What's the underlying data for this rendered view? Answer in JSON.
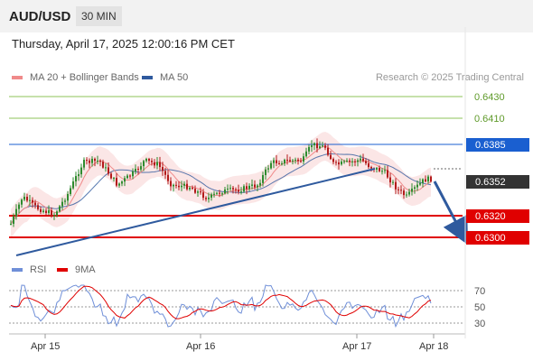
{
  "header": {
    "pair": "AUD/USD",
    "timeframe": "30 MIN"
  },
  "datetime": "Thursday, April 17, 2025 12:00:16 PM CET",
  "legend_main": [
    {
      "label": "MA 20 + Bollinger Bands",
      "color": "#f08a8a"
    },
    {
      "label": "MA 50",
      "color": "#2f5a9e"
    }
  ],
  "credit": "Research © 2025 Trading Central",
  "legend_rsi": [
    {
      "label": "RSI",
      "color": "#6f8fd8"
    },
    {
      "label": "9MA",
      "color": "#e00000"
    }
  ],
  "chart_data": {
    "type": "candlestick",
    "y_axis": {
      "ticks": [
        "0.6430",
        "0.6410",
        "0.6385",
        "0.6352",
        "0.6320",
        "0.6300"
      ]
    },
    "x_axis": {
      "ticks": [
        "Apr 15",
        "Apr 16",
        "Apr 17",
        "Apr 18"
      ]
    },
    "levels": [
      {
        "value": 0.643,
        "label": "0.6430",
        "type": "target",
        "color": "#6aaa3a"
      },
      {
        "value": 0.641,
        "label": "0.6410",
        "type": "target",
        "color": "#6aaa3a"
      },
      {
        "value": 0.6385,
        "label": "0.6385",
        "type": "resistance",
        "color": "#1a5fd0"
      },
      {
        "value": 0.6352,
        "label": "0.6352",
        "type": "last",
        "color": "#333333"
      },
      {
        "value": 0.632,
        "label": "0.6320",
        "type": "support",
        "color": "#e00000"
      },
      {
        "value": 0.63,
        "label": "0.6300",
        "type": "support",
        "color": "#e00000"
      }
    ],
    "rsi": {
      "ticks": [
        "70",
        "50",
        "30"
      ]
    }
  }
}
